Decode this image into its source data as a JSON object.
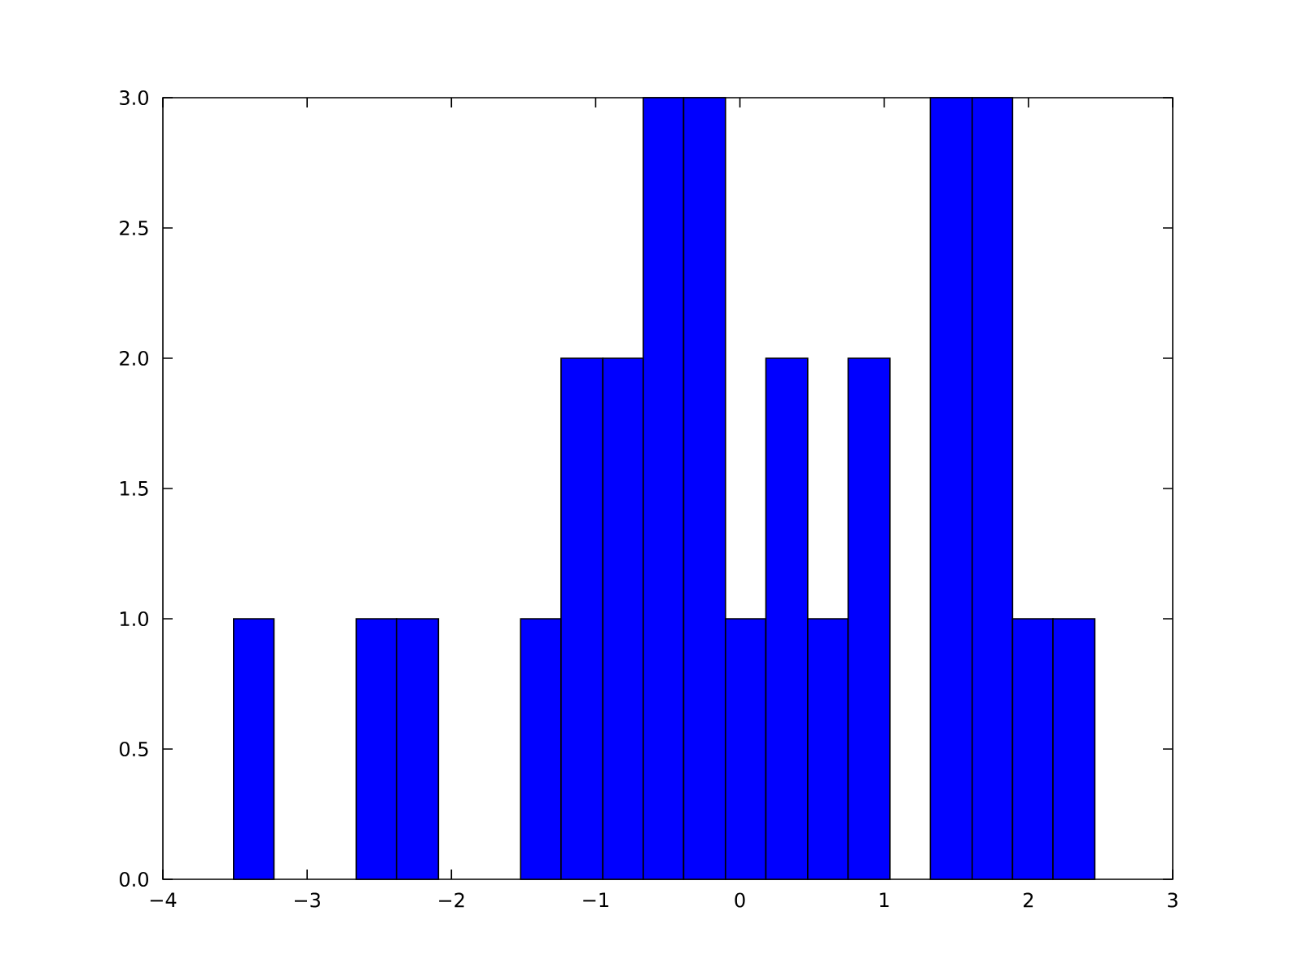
{
  "chart_data": {
    "type": "histogram",
    "bins": [
      -3.51,
      -3.23,
      -2.66,
      -2.38,
      -2.09,
      -1.52,
      -1.24,
      -0.95,
      -0.67,
      -0.39,
      -0.1,
      0.18,
      0.47,
      0.75,
      1.04,
      1.32,
      1.61,
      1.89,
      2.17,
      2.46
    ],
    "values": [
      1,
      0,
      1,
      1,
      0,
      1,
      2,
      2,
      3,
      3,
      1,
      2,
      1,
      2,
      0,
      3,
      3,
      1,
      1
    ],
    "color": "#0000ff",
    "xlim": [
      -4,
      3
    ],
    "ylim": [
      0,
      3
    ],
    "xticks": [
      {
        "value": -4,
        "label": "−4"
      },
      {
        "value": -3,
        "label": "−3"
      },
      {
        "value": -2,
        "label": "−2"
      },
      {
        "value": -1,
        "label": "−1"
      },
      0,
      1,
      2,
      3
    ],
    "yticks": [
      {
        "value": 0,
        "label": "0.0"
      },
      {
        "value": 0.5,
        "label": "0.5"
      },
      {
        "value": 1,
        "label": "1.0"
      },
      {
        "value": 1.5,
        "label": "1.5"
      },
      {
        "value": 2,
        "label": "2.0"
      },
      {
        "value": 2.5,
        "label": "2.5"
      },
      {
        "value": 3,
        "label": "3.0"
      }
    ],
    "grid": false
  }
}
